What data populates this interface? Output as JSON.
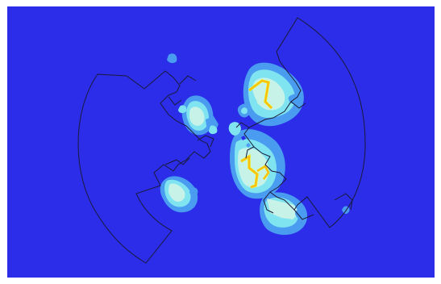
{
  "figure": {
    "colormap": [
      "#2a2ce6",
      "#4a9cf0",
      "#7fe3f0",
      "#c6f2e8",
      "#f4e814",
      "#ff9a14"
    ],
    "background_color": "#2b2de8",
    "outline_color": "#1a1a3a",
    "contains_text": false
  }
}
